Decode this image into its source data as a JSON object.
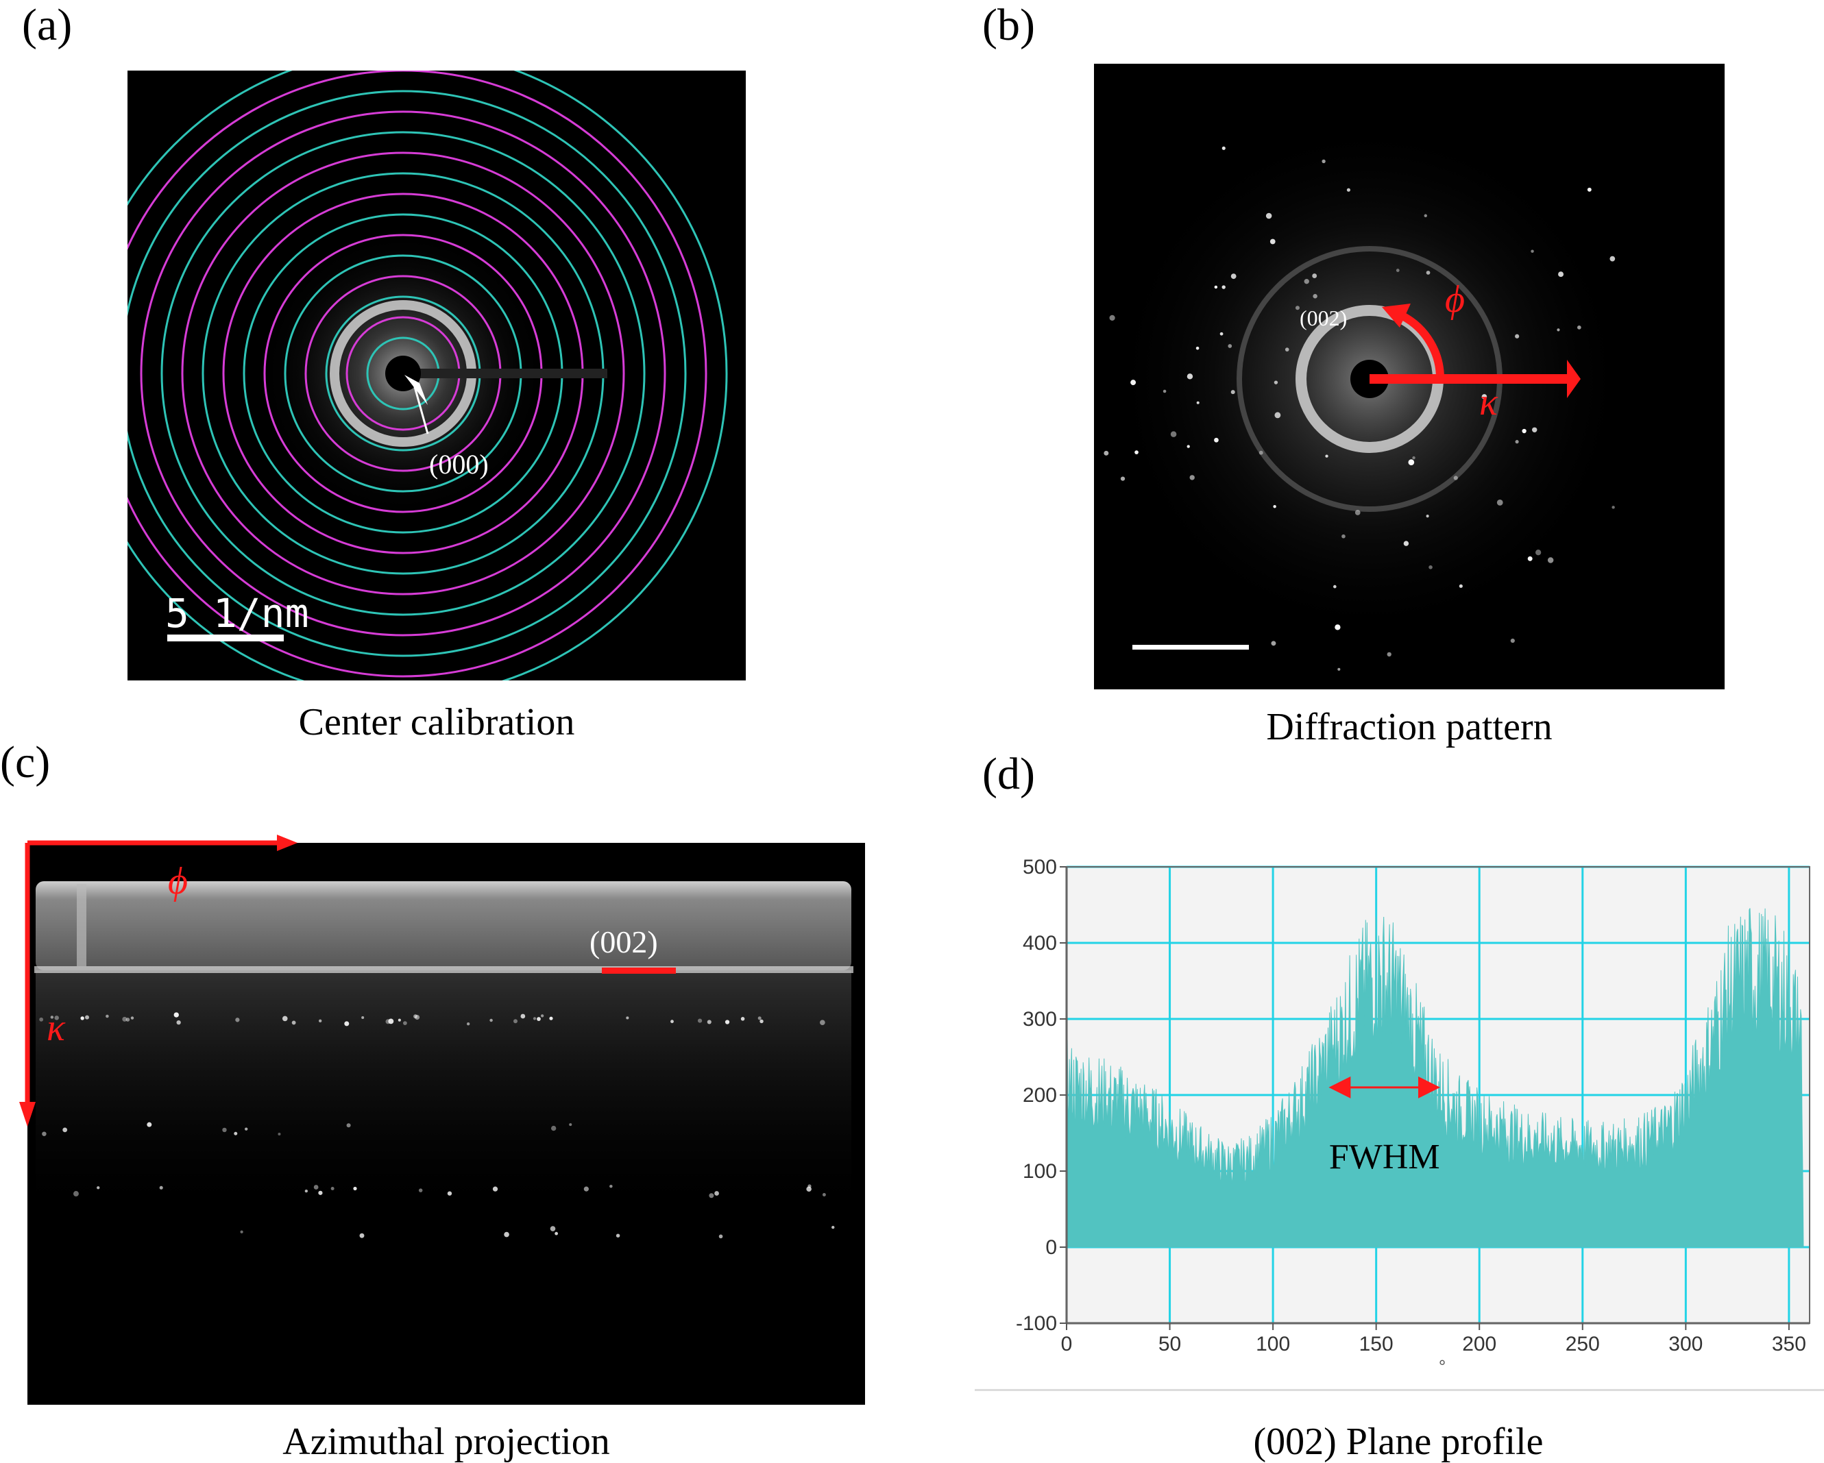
{
  "panels": {
    "a": {
      "label": "(a)",
      "caption": "Center calibration",
      "center_label": "(000)",
      "scale_bar_label": "5 1/nm",
      "colors": {
        "ring_magenta": "#d63cd6",
        "ring_cyan": "#2ec4b6"
      }
    },
    "b": {
      "label": "(b)",
      "caption": "Diffraction pattern",
      "ring_label": "(002)",
      "phi_symbol": "ϕ",
      "kappa_symbol": "κ",
      "colors": {
        "arrow": "#ff1a1a"
      }
    },
    "c": {
      "label": "(c)",
      "caption": "Azimuthal projection",
      "phi_symbol": "ϕ",
      "kappa_symbol": "κ",
      "band_label": "(002)",
      "colors": {
        "arrow": "#ff1a1a"
      }
    },
    "d": {
      "label": "(d)",
      "caption": "(002) Plane profile",
      "annotation": "FWHM",
      "x_unit": "°",
      "colors": {
        "fill": "#52c3c1",
        "grid": "#22d3e6",
        "plot_bg": "#f3f3f3",
        "arrow": "#ff1a1a"
      }
    }
  },
  "chart_data": {
    "type": "area",
    "xlim": [
      0,
      360
    ],
    "ylim": [
      -100,
      500
    ],
    "x_ticks": [
      0,
      50,
      100,
      150,
      200,
      250,
      300,
      350
    ],
    "y_ticks": [
      -100,
      0,
      100,
      200,
      300,
      400,
      500
    ],
    "grid": true,
    "fwhm_range": [
      127,
      181
    ],
    "envelope": {
      "x": [
        0,
        10,
        20,
        30,
        40,
        50,
        60,
        70,
        80,
        90,
        100,
        110,
        120,
        130,
        140,
        150,
        160,
        170,
        180,
        190,
        200,
        210,
        220,
        230,
        240,
        250,
        260,
        270,
        280,
        290,
        300,
        310,
        320,
        330,
        340,
        350,
        356,
        357
      ],
      "y": [
        215,
        205,
        195,
        185,
        170,
        155,
        135,
        118,
        108,
        118,
        140,
        175,
        215,
        265,
        320,
        360,
        335,
        270,
        210,
        180,
        165,
        155,
        145,
        140,
        135,
        132,
        130,
        133,
        140,
        152,
        190,
        250,
        330,
        360,
        350,
        330,
        270,
        0
      ]
    }
  }
}
